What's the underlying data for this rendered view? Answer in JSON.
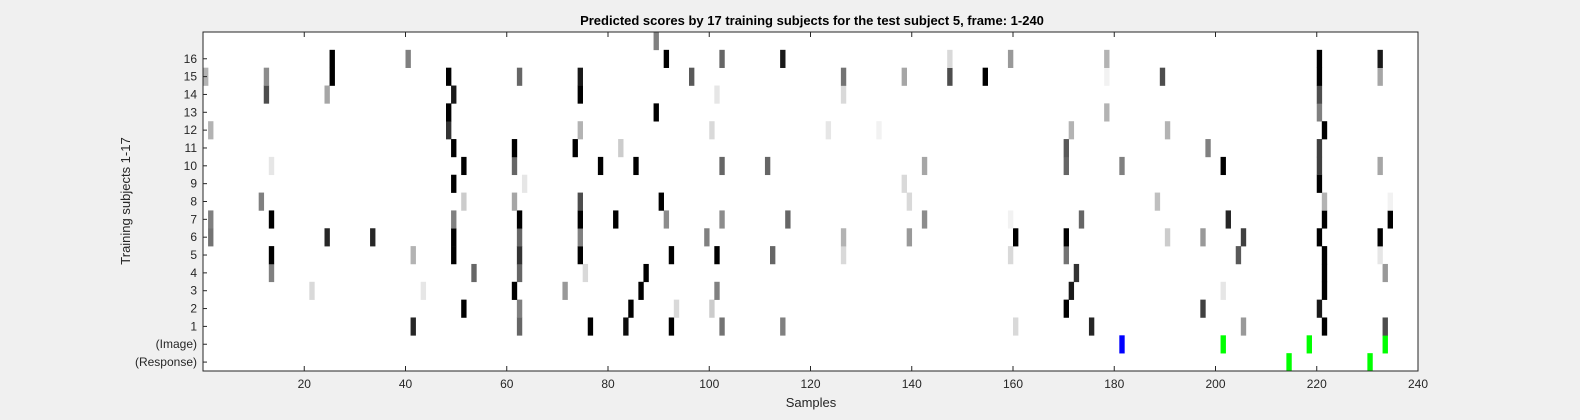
{
  "chart_data": {
    "type": "heatmap",
    "title": "Predicted scores by 17 training subjects for the test subject 5, frame: 1-240",
    "xlabel": "Samples",
    "ylabel": "Training subjects 1-17",
    "xlim": [
      1,
      240
    ],
    "xticks": [
      20,
      40,
      60,
      80,
      100,
      120,
      140,
      160,
      180,
      200,
      220,
      240
    ],
    "rows": [
      "(Response)",
      "(Image)",
      "1",
      "2",
      "3",
      "4",
      "5",
      "6",
      "7",
      "8",
      "9",
      "10",
      "11",
      "12",
      "13",
      "14",
      "15",
      "16",
      "17"
    ],
    "ytick_labels": [
      "(Response)",
      "(Image)",
      "1",
      "2",
      "3",
      "4",
      "5",
      "6",
      "7",
      "8",
      "9",
      "10",
      "11",
      "12",
      "13",
      "14",
      "15",
      "16"
    ],
    "score_colormap": "gray (white = 0, black = 1)",
    "event_colors": {
      "image_blue": "#0000ff",
      "green": "#00ff00"
    },
    "cells": {
      "(Response)": [
        [
          215,
          1,
          "#00ff00"
        ],
        [
          231,
          1,
          "#00ff00"
        ]
      ],
      "(Image)": [
        [
          182,
          1,
          "#0000ff"
        ],
        [
          202,
          1,
          "#00ff00"
        ],
        [
          219,
          1,
          "#00ff00"
        ],
        [
          234,
          1,
          "#00ff00"
        ]
      ],
      "1": [
        [
          42,
          0.85
        ],
        [
          63,
          0.6
        ],
        [
          77,
          1
        ],
        [
          84,
          0.95
        ],
        [
          93,
          1
        ],
        [
          103,
          0.55
        ],
        [
          115,
          0.5
        ],
        [
          161,
          0.15
        ],
        [
          176,
          0.85
        ],
        [
          206,
          0.4
        ],
        [
          222,
          1
        ],
        [
          234,
          0.7
        ]
      ],
      "2": [
        [
          52,
          1
        ],
        [
          63,
          0.5
        ],
        [
          85,
          1
        ],
        [
          94,
          0.15
        ],
        [
          101,
          0.2
        ],
        [
          171,
          1
        ],
        [
          198,
          0.75
        ],
        [
          221,
          0.9
        ]
      ],
      "3": [
        [
          22,
          0.15
        ],
        [
          44,
          0.1
        ],
        [
          62,
          1
        ],
        [
          72,
          0.4
        ],
        [
          87,
          1
        ],
        [
          102,
          0.5
        ],
        [
          172,
          0.9
        ],
        [
          202,
          0.1
        ],
        [
          222,
          1
        ]
      ],
      "4": [
        [
          14,
          0.5
        ],
        [
          54,
          0.6
        ],
        [
          63,
          0.6
        ],
        [
          76,
          0.15
        ],
        [
          88,
          1
        ],
        [
          173,
          0.8
        ],
        [
          222,
          1
        ],
        [
          234,
          0.4
        ]
      ],
      "5": [
        [
          14,
          1
        ],
        [
          42,
          0.3
        ],
        [
          50,
          1
        ],
        [
          63,
          0.8
        ],
        [
          75,
          1
        ],
        [
          93,
          1
        ],
        [
          102,
          1
        ],
        [
          113,
          0.6
        ],
        [
          127,
          0.15
        ],
        [
          160,
          0.15
        ],
        [
          171,
          0.55
        ],
        [
          205,
          0.65
        ],
        [
          222,
          1
        ],
        [
          233,
          0.1
        ]
      ],
      "6": [
        [
          2,
          0.55
        ],
        [
          25,
          0.85
        ],
        [
          34,
          0.85
        ],
        [
          50,
          1
        ],
        [
          63,
          0.6
        ],
        [
          75,
          0.5
        ],
        [
          100,
          0.5
        ],
        [
          127,
          0.3
        ],
        [
          140,
          0.4
        ],
        [
          161,
          1
        ],
        [
          171,
          1
        ],
        [
          191,
          0.2
        ],
        [
          198,
          0.4
        ],
        [
          206,
          0.75
        ],
        [
          221,
          1
        ],
        [
          233,
          1
        ]
      ],
      "7": [
        [
          2,
          0.5
        ],
        [
          14,
          1
        ],
        [
          50,
          0.5
        ],
        [
          63,
          1
        ],
        [
          75,
          1
        ],
        [
          82,
          1
        ],
        [
          92,
          0.45
        ],
        [
          103,
          0.45
        ],
        [
          116,
          0.6
        ],
        [
          143,
          0.45
        ],
        [
          160,
          0.05
        ],
        [
          174,
          0.6
        ],
        [
          203,
          0.85
        ],
        [
          222,
          1
        ],
        [
          235,
          1
        ]
      ],
      "8": [
        [
          12,
          0.5
        ],
        [
          52,
          0.2
        ],
        [
          62,
          0.35
        ],
        [
          75,
          0.7
        ],
        [
          91,
          1
        ],
        [
          140,
          0.15
        ],
        [
          189,
          0.25
        ],
        [
          222,
          0.3
        ],
        [
          235,
          0.05
        ]
      ],
      "9": [
        [
          50,
          1
        ],
        [
          64,
          0.1
        ],
        [
          139,
          0.15
        ],
        [
          221,
          1
        ]
      ],
      "10": [
        [
          14,
          0.1
        ],
        [
          52,
          1
        ],
        [
          62,
          0.6
        ],
        [
          79,
          1
        ],
        [
          86,
          1
        ],
        [
          103,
          0.6
        ],
        [
          112,
          0.6
        ],
        [
          143,
          0.35
        ],
        [
          171,
          0.6
        ],
        [
          182,
          0.5
        ],
        [
          202,
          1
        ],
        [
          221,
          0.75
        ],
        [
          233,
          0.35
        ]
      ],
      "11": [
        [
          50,
          1
        ],
        [
          62,
          1
        ],
        [
          74,
          1
        ],
        [
          83,
          0.2
        ],
        [
          171,
          0.65
        ],
        [
          199,
          0.5
        ],
        [
          221,
          0.75
        ]
      ],
      "12": [
        [
          2,
          0.3
        ],
        [
          49,
          0.8
        ],
        [
          75,
          0.3
        ],
        [
          101,
          0.15
        ],
        [
          124,
          0.1
        ],
        [
          134,
          0.05
        ],
        [
          172,
          0.3
        ],
        [
          191,
          0.3
        ],
        [
          222,
          1
        ]
      ],
      "13": [
        [
          49,
          1
        ],
        [
          90,
          1
        ],
        [
          179,
          0.3
        ],
        [
          221,
          0.5
        ]
      ],
      "14": [
        [
          13,
          0.7
        ],
        [
          25,
          0.35
        ],
        [
          50,
          0.9
        ],
        [
          75,
          1
        ],
        [
          102,
          0.1
        ],
        [
          127,
          0.15
        ],
        [
          221,
          0.7
        ]
      ],
      "15": [
        [
          1,
          0.3
        ],
        [
          13,
          0.45
        ],
        [
          26,
          1
        ],
        [
          49,
          1
        ],
        [
          63,
          0.6
        ],
        [
          75,
          0.9
        ],
        [
          97,
          0.65
        ],
        [
          127,
          0.55
        ],
        [
          139,
          0.35
        ],
        [
          148,
          0.7
        ],
        [
          155,
          1
        ],
        [
          179,
          0.05
        ],
        [
          190,
          0.7
        ],
        [
          221,
          1
        ],
        [
          233,
          0.35
        ]
      ],
      "16": [
        [
          26,
          1
        ],
        [
          41,
          0.5
        ],
        [
          92,
          1
        ],
        [
          103,
          0.6
        ],
        [
          115,
          0.9
        ],
        [
          148,
          0.15
        ],
        [
          160,
          0.4
        ],
        [
          179,
          0.3
        ],
        [
          221,
          1
        ],
        [
          233,
          0.9
        ]
      ],
      "17": [
        [
          90,
          0.5
        ]
      ]
    }
  }
}
